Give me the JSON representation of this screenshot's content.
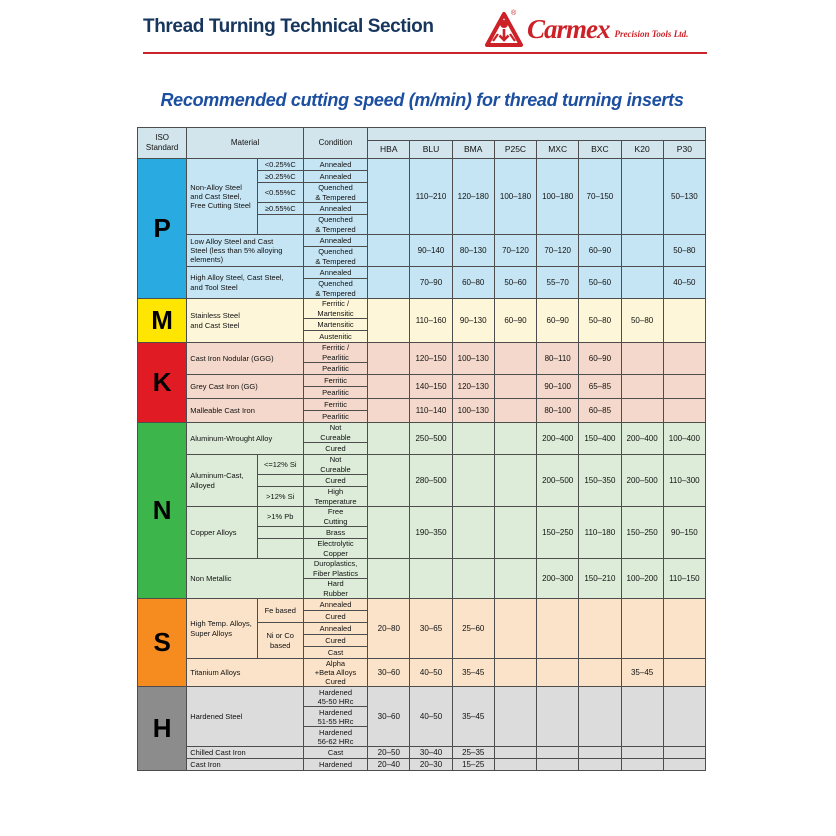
{
  "page": {
    "header_title": "Thread Turning Technical Section",
    "logo": {
      "brand": "Carmex",
      "tagline": "Precision Tools Ltd.",
      "brand_color": "#cc2127",
      "registered_mark": "®"
    },
    "table_title": "Recommended cutting speed (m/min) for thread turning inserts",
    "rule_color": "#c9242b",
    "header_title_color": "#17365d",
    "table_title_color": "#1d4fa0"
  },
  "table": {
    "corner_headers": {
      "iso": "ISO\nStandard",
      "material": "Material",
      "condition": "Condition"
    },
    "grade_columns": [
      "HBA",
      "BLU",
      "BMA",
      "P25C",
      "MXC",
      "BXC",
      "K20",
      "P30"
    ],
    "header_bg": "#d3e5ec",
    "sections": [
      {
        "letter": "P",
        "letter_bg": "#29abe2",
        "row_bg": "#c6e5f4",
        "groups": [
          {
            "material": "Non-Alloy Steel\nand Cast Steel,\nFree Cutting Steel",
            "qualifiers": [
              {
                "t": "<0.25%C",
                "span": 1
              },
              {
                "t": "≥0.25%C",
                "span": 1
              },
              {
                "t": "<0.55%C",
                "span": 1
              },
              {
                "t": "≥0.55%C",
                "span": 1
              },
              {
                "t": "",
                "span": 1
              }
            ],
            "conditions": [
              {
                "t": "Annealed",
                "lines": 1
              },
              {
                "t": "Annealed",
                "lines": 1
              },
              {
                "t": "Quenched\n& Tempered",
                "lines": 2
              },
              {
                "t": "Annealed",
                "lines": 1
              },
              {
                "t": "Quenched\n& Tempered",
                "lines": 2
              }
            ],
            "values": [
              "",
              "110–210",
              "120–180",
              "100–180",
              "100–180",
              "70–150",
              "",
              "50–130"
            ]
          },
          {
            "material": "Low Alloy Steel and Cast\nSteel (less than 5% alloying\nelements)",
            "qualifiers": null,
            "conditions": [
              {
                "t": "Annealed",
                "lines": 1
              },
              {
                "t": "Quenched\n& Tempered",
                "lines": 2
              }
            ],
            "values": [
              "",
              "90–140",
              "80–130",
              "70–120",
              "70–120",
              "60–90",
              "",
              "50–80"
            ]
          },
          {
            "material": "High Alloy Steel, Cast Steel,\nand Tool Steel",
            "qualifiers": null,
            "conditions": [
              {
                "t": "Annealed",
                "lines": 1
              },
              {
                "t": "Quenched\n& Tempered",
                "lines": 2
              }
            ],
            "values": [
              "",
              "70–90",
              "60–80",
              "50–60",
              "55–70",
              "50–60",
              "",
              "40–50"
            ]
          }
        ]
      },
      {
        "letter": "M",
        "letter_bg": "#ffe600",
        "row_bg": "#fdf6d8",
        "groups": [
          {
            "material": "Stainless Steel\nand Cast Steel",
            "qualifiers": null,
            "conditions": [
              {
                "t": "Ferritic /\nMartensitic",
                "lines": 2
              },
              {
                "t": "Martensitic",
                "lines": 1
              },
              {
                "t": "Austenitic",
                "lines": 1
              }
            ],
            "values": [
              "",
              "110–160",
              "90–130",
              "60–90",
              "60–90",
              "50–80",
              "50–80",
              ""
            ]
          }
        ]
      },
      {
        "letter": "K",
        "letter_bg": "#e01b24",
        "row_bg": "#f3d8cb",
        "groups": [
          {
            "material": "Cast Iron Nodular (GGG)",
            "qualifiers": null,
            "conditions": [
              {
                "t": "Ferritic /\nPearlitic",
                "lines": 2
              },
              {
                "t": "Pearlitic",
                "lines": 1
              }
            ],
            "values": [
              "",
              "120–150",
              "100–130",
              "",
              "80–110",
              "60–90",
              "",
              ""
            ]
          },
          {
            "material": "Grey Cast Iron (GG)",
            "qualifiers": null,
            "conditions": [
              {
                "t": "Ferritic",
                "lines": 1
              },
              {
                "t": "Pearlitic",
                "lines": 1
              }
            ],
            "values": [
              "",
              "140–150",
              "120–130",
              "",
              "90–100",
              "65–85",
              "",
              ""
            ]
          },
          {
            "material": "Malleable Cast Iron",
            "qualifiers": null,
            "conditions": [
              {
                "t": "Ferritic",
                "lines": 1
              },
              {
                "t": "Pearlitic",
                "lines": 1
              }
            ],
            "values": [
              "",
              "110–140",
              "100–130",
              "",
              "80–100",
              "60–85",
              "",
              ""
            ]
          }
        ]
      },
      {
        "letter": "N",
        "letter_bg": "#3cb54a",
        "row_bg": "#dcecd8",
        "groups": [
          {
            "material": "Aluminum-Wrought Alloy",
            "qualifiers": null,
            "conditions": [
              {
                "t": "Not\nCureable",
                "lines": 2
              },
              {
                "t": "Cured",
                "lines": 1
              }
            ],
            "values": [
              "",
              "250–500",
              "",
              "",
              "200–400",
              "150–400",
              "200–400",
              "100–400"
            ]
          },
          {
            "material": "Aluminum-Cast,\nAlloyed",
            "qualifiers": [
              {
                "t": "<=12% Si",
                "span": 1
              },
              {
                "t": "",
                "span": 1
              },
              {
                "t": ">12% Si",
                "span": 1
              }
            ],
            "conditions": [
              {
                "t": "Not\nCureable",
                "lines": 2
              },
              {
                "t": "Cured",
                "lines": 1
              },
              {
                "t": "High\nTemperature",
                "lines": 2
              }
            ],
            "values": [
              "",
              "280–500",
              "",
              "",
              "200–500",
              "150–350",
              "200–500",
              "110–300"
            ]
          },
          {
            "material": "Copper Alloys",
            "qualifiers": [
              {
                "t": ">1% Pb",
                "span": 1
              },
              {
                "t": "",
                "span": 1
              },
              {
                "t": "",
                "span": 1
              }
            ],
            "conditions": [
              {
                "t": "Free\nCutting",
                "lines": 2
              },
              {
                "t": "Brass",
                "lines": 1
              },
              {
                "t": "Electrolytic\nCopper",
                "lines": 2
              }
            ],
            "values": [
              "",
              "190–350",
              "",
              "",
              "150–250",
              "110–180",
              "150–250",
              "90–150"
            ]
          },
          {
            "material": "Non Metallic",
            "qualifiers": null,
            "conditions": [
              {
                "t": "Duroplastics,\nFiber Plastics",
                "lines": 2
              },
              {
                "t": "Hard\nRubber",
                "lines": 2
              }
            ],
            "values": [
              "",
              "",
              "",
              "",
              "200–300",
              "150–210",
              "100–200",
              "110–150"
            ]
          }
        ]
      },
      {
        "letter": "S",
        "letter_bg": "#f68b1f",
        "row_bg": "#fbe3ca",
        "groups": [
          {
            "material": "High Temp. Alloys,\nSuper Alloys",
            "qualifiers": [
              {
                "t": "Fe based",
                "span": 2
              },
              {
                "t": "Ni or Co\nbased",
                "span": 3
              }
            ],
            "conditions": [
              {
                "t": "Annealed",
                "lines": 1
              },
              {
                "t": "Cured",
                "lines": 1
              },
              {
                "t": "Annealed",
                "lines": 1
              },
              {
                "t": "Cured",
                "lines": 1
              },
              {
                "t": "Cast",
                "lines": 1
              }
            ],
            "values": [
              "20–80",
              "30–65",
              "25–60",
              "",
              "",
              "",
              "",
              ""
            ]
          },
          {
            "material": "Titanium Alloys",
            "qualifiers": null,
            "conditions": [
              {
                "t": "Alpha\n+Beta Alloys\nCured",
                "lines": 3
              }
            ],
            "values": [
              "30–60",
              "40–50",
              "35–45",
              "",
              "",
              "",
              "35–45",
              ""
            ]
          }
        ]
      },
      {
        "letter": "H",
        "letter_bg": "#8c8c8c",
        "row_bg": "#dcdcdc",
        "groups": [
          {
            "material": "Hardened Steel",
            "qualifiers": null,
            "conditions": [
              {
                "t": "Hardened\n45-50 HRc",
                "lines": 2
              },
              {
                "t": "Hardened\n51-55 HRc",
                "lines": 2
              },
              {
                "t": "Hardened\n56-62 HRc",
                "lines": 2
              }
            ],
            "values": [
              "30–60",
              "40–50",
              "35–45",
              "",
              "",
              "",
              "",
              ""
            ]
          },
          {
            "material": "Chilled Cast Iron",
            "qualifiers": null,
            "conditions": [
              {
                "t": "Cast",
                "lines": 1
              }
            ],
            "values": [
              "20–50",
              "30–40",
              "25–35",
              "",
              "",
              "",
              "",
              ""
            ]
          },
          {
            "material": "Cast Iron",
            "qualifiers": null,
            "conditions": [
              {
                "t": "Hardened",
                "lines": 1
              }
            ],
            "values": [
              "20–40",
              "20–30",
              "15–25",
              "",
              "",
              "",
              "",
              ""
            ]
          }
        ]
      }
    ]
  }
}
